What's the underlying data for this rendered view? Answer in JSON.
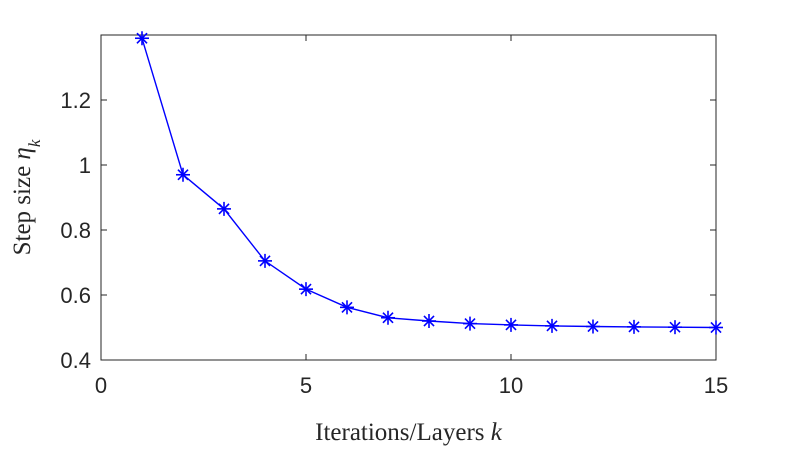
{
  "chart_data": {
    "type": "line",
    "title": "",
    "xlabel": {
      "text": "Iterations/Layers ",
      "var": "k"
    },
    "ylabel": {
      "text": "Step size ",
      "var": "η",
      "sub": "k"
    },
    "xlim": [
      0,
      15
    ],
    "ylim": [
      0.4,
      1.4
    ],
    "xticks": [
      0,
      5,
      10,
      15
    ],
    "xtick_labels": [
      "0",
      "5",
      "10",
      "15"
    ],
    "yticks": [
      0.4,
      0.6,
      0.8,
      1.0,
      1.2
    ],
    "ytick_labels": [
      "0.4",
      "0.6",
      "0.8",
      "1",
      "1.2"
    ],
    "grid": false,
    "series": [
      {
        "color": "#0000ff",
        "marker": "asterisk",
        "x": [
          1,
          2,
          3,
          4,
          5,
          6,
          7,
          8,
          9,
          10,
          11,
          12,
          13,
          14,
          15
        ],
        "values": [
          1.39,
          0.97,
          0.865,
          0.705,
          0.618,
          0.562,
          0.53,
          0.52,
          0.512,
          0.508,
          0.505,
          0.503,
          0.502,
          0.501,
          0.5
        ]
      }
    ]
  }
}
